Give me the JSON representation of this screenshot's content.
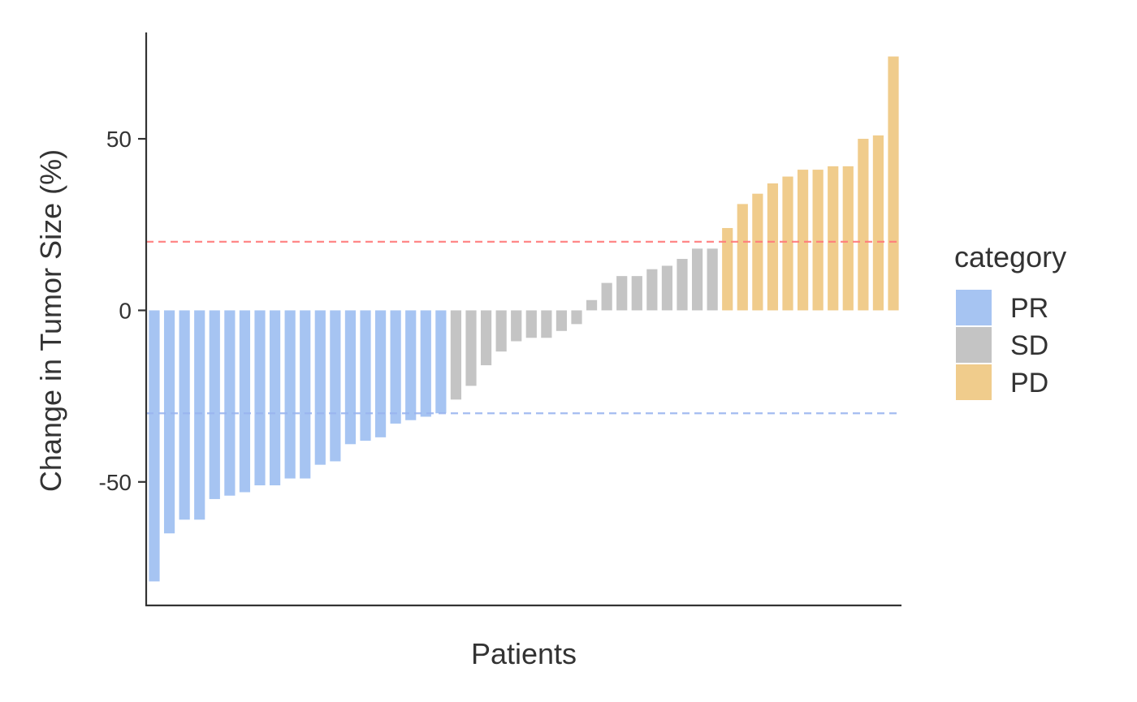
{
  "chart_data": {
    "type": "bar",
    "title": "",
    "xlabel": "Patients",
    "ylabel": "Change in Tumor Size (%)",
    "ylim": [
      -86,
      81
    ],
    "yticks": [
      -50,
      0,
      50
    ],
    "ytick_labels": [
      "-50",
      "0",
      "50"
    ],
    "grid": false,
    "legend": {
      "title": "category",
      "placement": "right",
      "entries": [
        {
          "label": "PR",
          "color": "#a6c4f2"
        },
        {
          "label": "SD",
          "color": "#c4c4c4"
        },
        {
          "label": "PD",
          "color": "#f0cc8c"
        }
      ]
    },
    "reference_lines": [
      {
        "y": 20,
        "color": "#ff7a7a"
      },
      {
        "y": -30,
        "color": "#9ab5ee"
      }
    ],
    "bars": [
      {
        "value": -79,
        "category": "PR"
      },
      {
        "value": -65,
        "category": "PR"
      },
      {
        "value": -61,
        "category": "PR"
      },
      {
        "value": -61,
        "category": "PR"
      },
      {
        "value": -55,
        "category": "PR"
      },
      {
        "value": -54,
        "category": "PR"
      },
      {
        "value": -53,
        "category": "PR"
      },
      {
        "value": -51,
        "category": "PR"
      },
      {
        "value": -51,
        "category": "PR"
      },
      {
        "value": -49,
        "category": "PR"
      },
      {
        "value": -49,
        "category": "PR"
      },
      {
        "value": -45,
        "category": "PR"
      },
      {
        "value": -44,
        "category": "PR"
      },
      {
        "value": -39,
        "category": "PR"
      },
      {
        "value": -38,
        "category": "PR"
      },
      {
        "value": -37,
        "category": "PR"
      },
      {
        "value": -33,
        "category": "PR"
      },
      {
        "value": -32,
        "category": "PR"
      },
      {
        "value": -31,
        "category": "PR"
      },
      {
        "value": -30,
        "category": "PR"
      },
      {
        "value": -26,
        "category": "SD"
      },
      {
        "value": -22,
        "category": "SD"
      },
      {
        "value": -16,
        "category": "SD"
      },
      {
        "value": -12,
        "category": "SD"
      },
      {
        "value": -9,
        "category": "SD"
      },
      {
        "value": -8,
        "category": "SD"
      },
      {
        "value": -8,
        "category": "SD"
      },
      {
        "value": -6,
        "category": "SD"
      },
      {
        "value": -4,
        "category": "SD"
      },
      {
        "value": 3,
        "category": "SD"
      },
      {
        "value": 8,
        "category": "SD"
      },
      {
        "value": 10,
        "category": "SD"
      },
      {
        "value": 10,
        "category": "SD"
      },
      {
        "value": 12,
        "category": "SD"
      },
      {
        "value": 13,
        "category": "SD"
      },
      {
        "value": 15,
        "category": "SD"
      },
      {
        "value": 18,
        "category": "SD"
      },
      {
        "value": 18,
        "category": "SD"
      },
      {
        "value": 24,
        "category": "PD"
      },
      {
        "value": 31,
        "category": "PD"
      },
      {
        "value": 34,
        "category": "PD"
      },
      {
        "value": 37,
        "category": "PD"
      },
      {
        "value": 39,
        "category": "PD"
      },
      {
        "value": 41,
        "category": "PD"
      },
      {
        "value": 41,
        "category": "PD"
      },
      {
        "value": 42,
        "category": "PD"
      },
      {
        "value": 42,
        "category": "PD"
      },
      {
        "value": 50,
        "category": "PD"
      },
      {
        "value": 51,
        "category": "PD"
      },
      {
        "value": 74,
        "category": "PD"
      }
    ]
  }
}
